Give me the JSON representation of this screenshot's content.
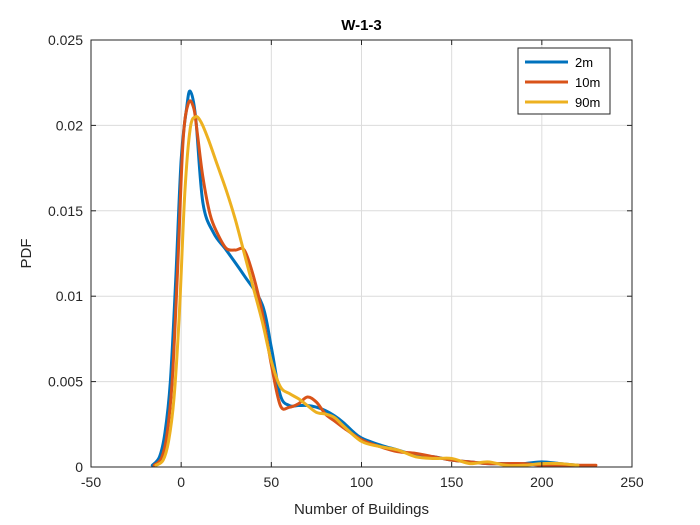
{
  "chart_data": {
    "type": "line",
    "title": "W-1-3",
    "xlabel": "Number of Buildings",
    "ylabel": "PDF",
    "xlim": [
      -50,
      250
    ],
    "ylim": [
      0,
      0.025
    ],
    "xticks": [
      -50,
      0,
      50,
      100,
      150,
      200,
      250
    ],
    "yticks": [
      0,
      0.005,
      0.01,
      0.015,
      0.02,
      0.025
    ],
    "xtick_labels": [
      "-50",
      "0",
      "50",
      "100",
      "150",
      "200",
      "250"
    ],
    "ytick_labels": [
      "0",
      "0.005",
      "0.01",
      "0.015",
      "0.02",
      "0.025"
    ],
    "grid": true,
    "legend_position": "top-right",
    "series": [
      {
        "name": "2m",
        "color": "#0072bd",
        "x": [
          -16,
          -12,
          -9,
          -6,
          -3,
          0,
          3,
          5,
          8,
          12,
          18,
          25,
          35,
          45,
          50,
          55,
          60,
          65,
          70,
          75,
          80,
          85,
          90,
          95,
          100,
          110,
          120,
          130,
          140,
          150,
          160,
          170,
          180,
          190,
          200,
          210,
          220
        ],
        "y": [
          0.0001,
          0.0006,
          0.002,
          0.005,
          0.011,
          0.018,
          0.021,
          0.022,
          0.0205,
          0.0155,
          0.0137,
          0.0127,
          0.0112,
          0.0095,
          0.007,
          0.0042,
          0.0036,
          0.0036,
          0.0036,
          0.0035,
          0.0033,
          0.003,
          0.0026,
          0.0021,
          0.0017,
          0.0013,
          0.001,
          0.0007,
          0.0006,
          0.0004,
          0.0003,
          0.0002,
          0.0002,
          0.0002,
          0.0003,
          0.0002,
          0.0001
        ]
      },
      {
        "name": "10m",
        "color": "#d95319",
        "x": [
          -15,
          -11,
          -8,
          -5,
          -2,
          1,
          4,
          7,
          9,
          12,
          16,
          20,
          25,
          30,
          35,
          40,
          45,
          50,
          55,
          60,
          65,
          70,
          75,
          80,
          85,
          90,
          100,
          110,
          120,
          130,
          140,
          150,
          160,
          170,
          180,
          190,
          200,
          210,
          220,
          230
        ],
        "y": [
          0.0001,
          0.0005,
          0.0018,
          0.005,
          0.0115,
          0.019,
          0.0213,
          0.021,
          0.0195,
          0.017,
          0.0148,
          0.0137,
          0.0128,
          0.0127,
          0.0127,
          0.0112,
          0.009,
          0.006,
          0.0036,
          0.0035,
          0.0037,
          0.0041,
          0.0038,
          0.0031,
          0.0027,
          0.0023,
          0.0016,
          0.0012,
          0.0009,
          0.0008,
          0.0006,
          0.0004,
          0.0003,
          0.0002,
          0.0002,
          0.0002,
          0.0001,
          0.0001,
          0.0001,
          0.0001
        ]
      },
      {
        "name": "90m",
        "color": "#edb120",
        "x": [
          -14,
          -10,
          -7,
          -4,
          -1,
          2,
          5,
          8,
          11,
          15,
          20,
          25,
          30,
          35,
          40,
          45,
          50,
          55,
          60,
          65,
          70,
          75,
          80,
          85,
          90,
          100,
          110,
          120,
          130,
          140,
          150,
          160,
          170,
          180,
          190,
          200,
          210,
          220
        ],
        "y": [
          0.0001,
          0.0004,
          0.0015,
          0.004,
          0.009,
          0.016,
          0.0198,
          0.0205,
          0.0202,
          0.0192,
          0.0177,
          0.0162,
          0.0145,
          0.0125,
          0.0105,
          0.0085,
          0.0062,
          0.0047,
          0.0043,
          0.004,
          0.0036,
          0.0032,
          0.0031,
          0.0029,
          0.0024,
          0.0015,
          0.0012,
          0.001,
          0.0006,
          0.0005,
          0.0005,
          0.0002,
          0.0003,
          0.0001,
          0.0001,
          0.0002,
          0.0002,
          0.0001
        ]
      }
    ]
  }
}
